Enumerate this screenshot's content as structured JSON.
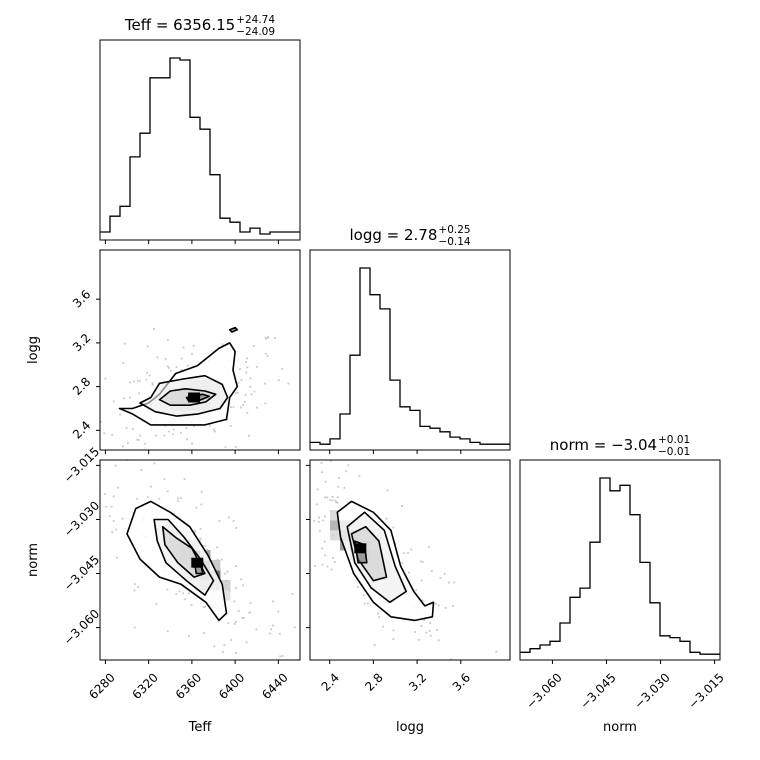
{
  "chart_data": {
    "type": "corner",
    "parameters": [
      "Teff",
      "logg",
      "norm"
    ],
    "axis_labels": {
      "Teff": "Teff",
      "logg": "logg",
      "norm": "norm"
    },
    "ranges": {
      "Teff": [
        6275,
        6460
      ],
      "logg": [
        2.22,
        4.05
      ],
      "norm": [
        -3.069,
        -3.0135
      ]
    },
    "ticks": {
      "Teff": [
        6280,
        6320,
        6360,
        6400,
        6440
      ],
      "logg": [
        2.4,
        2.8,
        3.2,
        3.6
      ],
      "norm": [
        -3.06,
        -3.045,
        -3.03,
        -3.015
      ]
    },
    "tick_labels": {
      "Teff": [
        "6280",
        "6320",
        "6360",
        "6400",
        "6440"
      ],
      "logg": [
        "2.4",
        "2.8",
        "3.2",
        "3.6"
      ],
      "norm": [
        "−3.060",
        "−3.045",
        "−3.030",
        "−3.015"
      ]
    },
    "titles": [
      {
        "param": "Teff",
        "prefix": "Teff = ",
        "value": "6356.15",
        "plus": "+24.74",
        "minus": "−24.09"
      },
      {
        "param": "logg",
        "prefix": "logg = ",
        "value": "2.78",
        "plus": "+0.25",
        "minus": "−0.14"
      },
      {
        "param": "norm",
        "prefix": "norm = ",
        "value": "−3.04",
        "plus": "+0.01",
        "minus": "−0.01"
      }
    ],
    "histograms": {
      "Teff": {
        "edges": [
          6275,
          6284.25,
          6293.5,
          6302.75,
          6312,
          6321.25,
          6330.5,
          6339.75,
          6349,
          6358.25,
          6367.5,
          6376.75,
          6386,
          6395.25,
          6404.5,
          6413.75,
          6423,
          6432.25,
          6441.5,
          6450.75,
          6460
        ],
        "counts": [
          2,
          10,
          15,
          40,
          52,
          80,
          80,
          90,
          89,
          60,
          54,
          31,
          9,
          7,
          2,
          4,
          1,
          2,
          2,
          2
        ]
      },
      "logg": {
        "edges": [
          2.22,
          2.3115,
          2.403,
          2.4945,
          2.586,
          2.6775,
          2.769,
          2.8605,
          2.952,
          3.0435,
          3.135,
          3.2265,
          3.318,
          3.4095,
          3.501,
          3.5925,
          3.684,
          3.7755,
          3.867,
          3.9585,
          4.05
        ],
        "counts": [
          2,
          1,
          4,
          18,
          51,
          100,
          85,
          77,
          37,
          22,
          20,
          11,
          10,
          8,
          5,
          4,
          2,
          1,
          1,
          1
        ]
      },
      "norm": {
        "edges": [
          -3.069,
          -3.066225,
          -3.06345,
          -3.060675,
          -3.0579,
          -3.055125,
          -3.05235,
          -3.049575,
          -3.0468,
          -3.044025,
          -3.04125,
          -3.038475,
          -3.0357,
          -3.032925,
          -3.03015,
          -3.027375,
          -3.0246,
          -3.021825,
          -3.01905,
          -3.016275,
          -3.0135
        ],
        "counts": [
          2,
          4,
          6,
          8,
          18,
          32,
          37,
          62,
          97,
          90,
          93,
          77,
          51,
          29,
          11,
          10,
          8,
          2,
          1,
          1
        ]
      }
    },
    "pairs": [
      {
        "x": "Teff",
        "y": "logg",
        "center": [
          6356,
          2.72
        ],
        "sigma_major": 26,
        "sigma_minor": 0.14,
        "slope": 0.0018,
        "density_peak": [
          6362,
          2.7
        ],
        "contours": [
          [
            [
              6293,
              2.6
            ],
            [
              6305,
              2.6
            ],
            [
              6320,
              2.65
            ],
            [
              6330,
              2.73
            ],
            [
              6345,
              2.92
            ],
            [
              6365,
              2.99
            ],
            [
              6385,
              3.15
            ],
            [
              6395,
              3.2
            ],
            [
              6400,
              3.12
            ],
            [
              6398,
              2.95
            ],
            [
              6402,
              2.8
            ],
            [
              6395,
              2.7
            ],
            [
              6392,
              2.5
            ],
            [
              6372,
              2.45
            ],
            [
              6350,
              2.45
            ],
            [
              6322,
              2.45
            ],
            [
              6305,
              2.55
            ]
          ],
          [
            [
              6312,
              2.65
            ],
            [
              6322,
              2.7
            ],
            [
              6330,
              2.83
            ],
            [
              6352,
              2.87
            ],
            [
              6372,
              2.9
            ],
            [
              6388,
              2.82
            ],
            [
              6393,
              2.7
            ],
            [
              6386,
              2.6
            ],
            [
              6366,
              2.55
            ],
            [
              6346,
              2.53
            ],
            [
              6326,
              2.57
            ]
          ],
          [
            [
              6330,
              2.68
            ],
            [
              6340,
              2.76
            ],
            [
              6354,
              2.78
            ],
            [
              6372,
              2.76
            ],
            [
              6382,
              2.73
            ],
            [
              6373,
              2.66
            ],
            [
              6358,
              2.63
            ],
            [
              6340,
              2.63
            ]
          ],
          [
            [
              6355,
              2.7
            ],
            [
              6370,
              2.73
            ],
            [
              6376,
              2.71
            ],
            [
              6366,
              2.67
            ],
            [
              6357,
              2.67
            ]
          ]
        ],
        "extra_contours": [
          [
            [
              6395,
              3.32
            ],
            [
              6400,
              3.34
            ],
            [
              6402,
              3.32
            ],
            [
              6397,
              3.3
            ]
          ]
        ]
      },
      {
        "x": "Teff",
        "y": "norm",
        "center": [
          6356,
          -3.041
        ],
        "sigma_major": 25,
        "sigma_minor": 0.005,
        "slope": -0.00027,
        "density_peak": [
          6365,
          -3.042
        ],
        "contours": [
          [
            [
              6300,
              -3.034
            ],
            [
              6308,
              -3.027
            ],
            [
              6322,
              -3.025
            ],
            [
              6340,
              -3.028
            ],
            [
              6358,
              -3.032
            ],
            [
              6375,
              -3.04
            ],
            [
              6388,
              -3.048
            ],
            [
              6392,
              -3.056
            ],
            [
              6385,
              -3.058
            ],
            [
              6373,
              -3.053
            ],
            [
              6350,
              -3.048
            ],
            [
              6330,
              -3.046
            ],
            [
              6312,
              -3.041
            ]
          ],
          [
            [
              6325,
              -3.03
            ],
            [
              6338,
              -3.03
            ],
            [
              6353,
              -3.035
            ],
            [
              6368,
              -3.041
            ],
            [
              6380,
              -3.047
            ],
            [
              6372,
              -3.051
            ],
            [
              6355,
              -3.047
            ],
            [
              6336,
              -3.042
            ],
            [
              6328,
              -3.036
            ]
          ],
          [
            [
              6333,
              -3.032
            ],
            [
              6345,
              -3.035
            ],
            [
              6360,
              -3.038
            ],
            [
              6372,
              -3.045
            ],
            [
              6362,
              -3.046
            ],
            [
              6347,
              -3.042
            ],
            [
              6335,
              -3.037
            ]
          ],
          [
            [
              6362,
              -3.041
            ],
            [
              6368,
              -3.042
            ],
            [
              6370,
              -3.045
            ],
            [
              6364,
              -3.045
            ]
          ]
        ],
        "extra_contours": []
      },
      {
        "x": "logg",
        "y": "norm",
        "center": [
          2.78,
          -3.041
        ],
        "sigma_major": 0.25,
        "sigma_minor": 0.005,
        "slope": -0.028,
        "density_peak": [
          2.68,
          -3.038
        ],
        "contours": [
          [
            [
              2.47,
              -3.028
            ],
            [
              2.6,
              -3.025
            ],
            [
              2.8,
              -3.028
            ],
            [
              2.96,
              -3.033
            ],
            [
              3.05,
              -3.043
            ],
            [
              3.17,
              -3.05
            ],
            [
              3.27,
              -3.054
            ],
            [
              3.35,
              -3.053
            ],
            [
              3.34,
              -3.057
            ],
            [
              3.18,
              -3.058
            ],
            [
              2.96,
              -3.057
            ],
            [
              2.8,
              -3.053
            ],
            [
              2.62,
              -3.045
            ],
            [
              2.5,
              -3.035
            ]
          ],
          [
            [
              2.56,
              -3.032
            ],
            [
              2.72,
              -3.028
            ],
            [
              2.9,
              -3.033
            ],
            [
              3.0,
              -3.043
            ],
            [
              3.1,
              -3.05
            ],
            [
              2.95,
              -3.053
            ],
            [
              2.78,
              -3.049
            ],
            [
              2.63,
              -3.042
            ]
          ],
          [
            [
              2.6,
              -3.034
            ],
            [
              2.73,
              -3.032
            ],
            [
              2.85,
              -3.036
            ],
            [
              2.92,
              -3.046
            ],
            [
              2.8,
              -3.047
            ],
            [
              2.66,
              -3.041
            ]
          ],
          [
            [
              2.63,
              -3.036
            ],
            [
              2.72,
              -3.037
            ],
            [
              2.74,
              -3.042
            ],
            [
              2.66,
              -3.042
            ]
          ]
        ],
        "extra_contours": []
      }
    ]
  }
}
